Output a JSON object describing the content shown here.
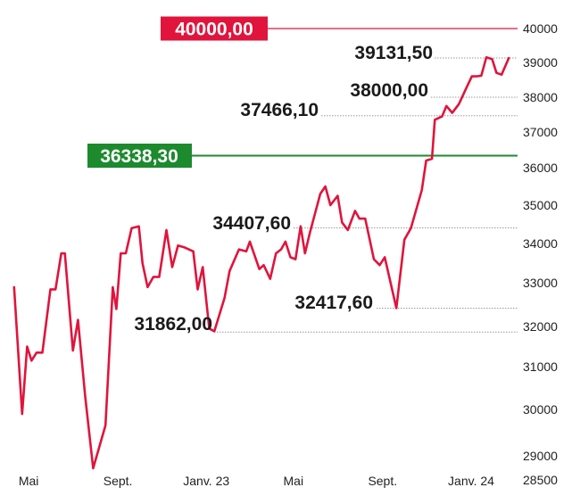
{
  "chart_data": {
    "type": "line",
    "title": "",
    "xlabel": "",
    "ylabel": "",
    "ylim": [
      28500,
      40000
    ],
    "y_ticks": [
      28500,
      29000,
      30000,
      31000,
      32000,
      33000,
      34000,
      35000,
      36000,
      37000,
      38000,
      39000,
      40000
    ],
    "x_range": [
      "2022-04-10",
      "2024-03-05"
    ],
    "x_ticks": [
      {
        "date": "2022-05-01",
        "label": "Mai"
      },
      {
        "date": "2022-09-01",
        "label": "Sept."
      },
      {
        "date": "2023-01-01",
        "label": "Janv. 23"
      },
      {
        "date": "2023-05-01",
        "label": "Mai"
      },
      {
        "date": "2023-09-01",
        "label": "Sept."
      },
      {
        "date": "2024-01-01",
        "label": "Janv. 24"
      }
    ],
    "colors": {
      "series": "#e0143c",
      "target": "#e0143c",
      "support": "#1d8a2e",
      "grid": "#999999"
    },
    "series": [
      {
        "values": [
          [
            "2022-04-11",
            32900
          ],
          [
            "2022-04-22",
            29900
          ],
          [
            "2022-04-29",
            31500
          ],
          [
            "2022-05-05",
            31150
          ],
          [
            "2022-05-12",
            31350
          ],
          [
            "2022-05-20",
            31350
          ],
          [
            "2022-05-31",
            32850
          ],
          [
            "2022-06-07",
            32850
          ],
          [
            "2022-06-15",
            33750
          ],
          [
            "2022-06-20",
            33750
          ],
          [
            "2022-07-01",
            31400
          ],
          [
            "2022-07-08",
            32150
          ],
          [
            "2022-07-18",
            30300
          ],
          [
            "2022-07-29",
            28700
          ],
          [
            "2022-08-15",
            29650
          ],
          [
            "2022-08-25",
            32900
          ],
          [
            "2022-08-30",
            32400
          ],
          [
            "2022-09-05",
            33750
          ],
          [
            "2022-09-12",
            33750
          ],
          [
            "2022-09-20",
            34400
          ],
          [
            "2022-09-30",
            34450
          ],
          [
            "2022-10-05",
            33500
          ],
          [
            "2022-10-12",
            32900
          ],
          [
            "2022-10-20",
            33150
          ],
          [
            "2022-10-28",
            33150
          ],
          [
            "2022-11-07",
            34350
          ],
          [
            "2022-11-15",
            33400
          ],
          [
            "2022-11-23",
            33950
          ],
          [
            "2022-12-02",
            33900
          ],
          [
            "2022-12-14",
            33800
          ],
          [
            "2022-12-20",
            32850
          ],
          [
            "2022-12-27",
            33400
          ],
          [
            "2023-01-05",
            31950
          ],
          [
            "2023-01-12",
            31880
          ],
          [
            "2023-01-26",
            32650
          ],
          [
            "2023-02-02",
            33300
          ],
          [
            "2023-02-15",
            33850
          ],
          [
            "2023-02-25",
            33800
          ],
          [
            "2023-03-02",
            34050
          ],
          [
            "2023-03-15",
            33350
          ],
          [
            "2023-03-21",
            33450
          ],
          [
            "2023-03-30",
            33100
          ],
          [
            "2023-04-07",
            33750
          ],
          [
            "2023-04-14",
            33850
          ],
          [
            "2023-04-20",
            34050
          ],
          [
            "2023-04-27",
            33650
          ],
          [
            "2023-05-04",
            33600
          ],
          [
            "2023-05-11",
            34450
          ],
          [
            "2023-05-17",
            33750
          ],
          [
            "2023-05-24",
            34300
          ],
          [
            "2023-06-07",
            35300
          ],
          [
            "2023-06-14",
            35500
          ],
          [
            "2023-06-21",
            35000
          ],
          [
            "2023-07-01",
            35250
          ],
          [
            "2023-07-07",
            34550
          ],
          [
            "2023-07-15",
            34350
          ],
          [
            "2023-07-25",
            34850
          ],
          [
            "2023-07-31",
            34650
          ],
          [
            "2023-08-08",
            34650
          ],
          [
            "2023-08-20",
            33600
          ],
          [
            "2023-08-28",
            33450
          ],
          [
            "2023-09-04",
            33650
          ],
          [
            "2023-09-20",
            32420
          ],
          [
            "2023-10-01",
            34100
          ],
          [
            "2023-10-10",
            34400
          ],
          [
            "2023-10-25",
            35400
          ],
          [
            "2023-10-31",
            36200
          ],
          [
            "2023-11-08",
            36250
          ],
          [
            "2023-11-12",
            37350
          ],
          [
            "2023-11-22",
            37450
          ],
          [
            "2023-11-28",
            37750
          ],
          [
            "2023-12-06",
            37550
          ],
          [
            "2023-12-15",
            37800
          ],
          [
            "2023-12-25",
            38250
          ],
          [
            "2024-01-02",
            38600
          ],
          [
            "2024-01-08",
            38600
          ],
          [
            "2024-01-15",
            38620
          ],
          [
            "2024-01-22",
            39150
          ],
          [
            "2024-01-30",
            39100
          ],
          [
            "2024-02-05",
            38700
          ],
          [
            "2024-02-12",
            38650
          ],
          [
            "2024-02-22",
            39130
          ]
        ]
      }
    ],
    "reference_lines": [
      {
        "value": 40000,
        "label": "40000,00",
        "style": "boxed-red"
      },
      {
        "value": 36338.3,
        "label": "36338,30",
        "style": "boxed-green"
      }
    ],
    "annotations": [
      {
        "label": "39131,50",
        "value": 39131.5
      },
      {
        "label": "38000,00",
        "value": 38000
      },
      {
        "label": "37466,10",
        "value": 37466.1
      },
      {
        "label": "34407,60",
        "value": 34407.6
      },
      {
        "label": "31862,00",
        "value": 31862
      },
      {
        "label": "32417,60",
        "value": 32417.6
      }
    ],
    "grid": false,
    "legend": "none"
  }
}
